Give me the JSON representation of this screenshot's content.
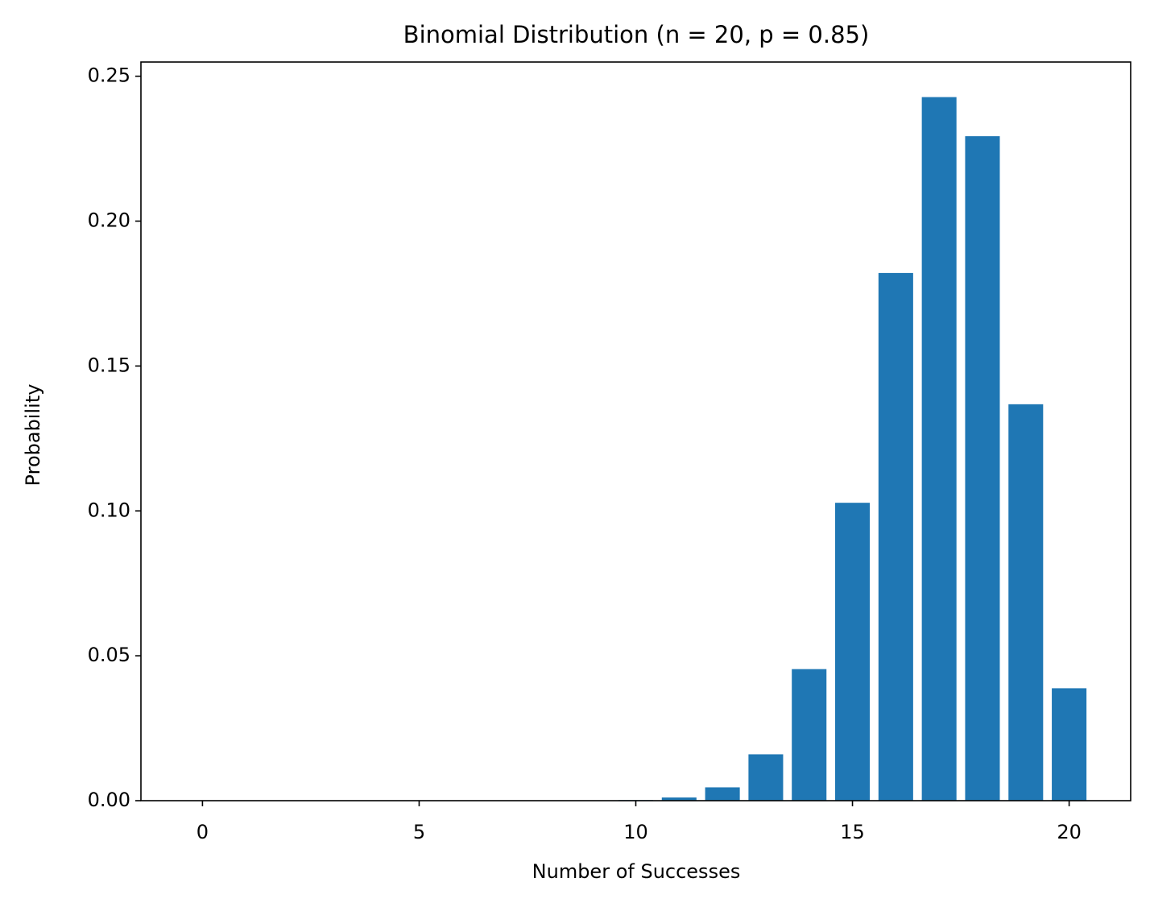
{
  "chart_data": {
    "type": "bar",
    "title": "Binomial Distribution (n = 20, p = 0.85)",
    "x_label": "Number of Successes",
    "y_label": "Probability",
    "x": [
      0,
      1,
      2,
      3,
      4,
      5,
      6,
      7,
      8,
      9,
      10,
      11,
      12,
      13,
      14,
      15,
      16,
      17,
      18,
      19,
      20
    ],
    "values": [
      0,
      0,
      0,
      0,
      0,
      0,
      0,
      0,
      0,
      0,
      0.0002,
      0.0011,
      0.0046,
      0.016,
      0.0454,
      0.1028,
      0.1821,
      0.2428,
      0.2293,
      0.1368,
      0.0388
    ],
    "color": "#1f77b4",
    "xlim": [
      -1.42,
      21.42
    ],
    "xticks": [
      0,
      5,
      10,
      15,
      20
    ],
    "ylim": [
      0,
      0.2549
    ],
    "yticks": [
      {
        "value": 0,
        "label": "0.00"
      },
      {
        "value": 0.05,
        "label": "0.05"
      },
      {
        "value": 0.1,
        "label": "0.10"
      },
      {
        "value": 0.15,
        "label": "0.15"
      },
      {
        "value": 0.2,
        "label": "0.20"
      },
      {
        "value": 0.25,
        "label": "0.25"
      }
    ],
    "grid": false
  }
}
